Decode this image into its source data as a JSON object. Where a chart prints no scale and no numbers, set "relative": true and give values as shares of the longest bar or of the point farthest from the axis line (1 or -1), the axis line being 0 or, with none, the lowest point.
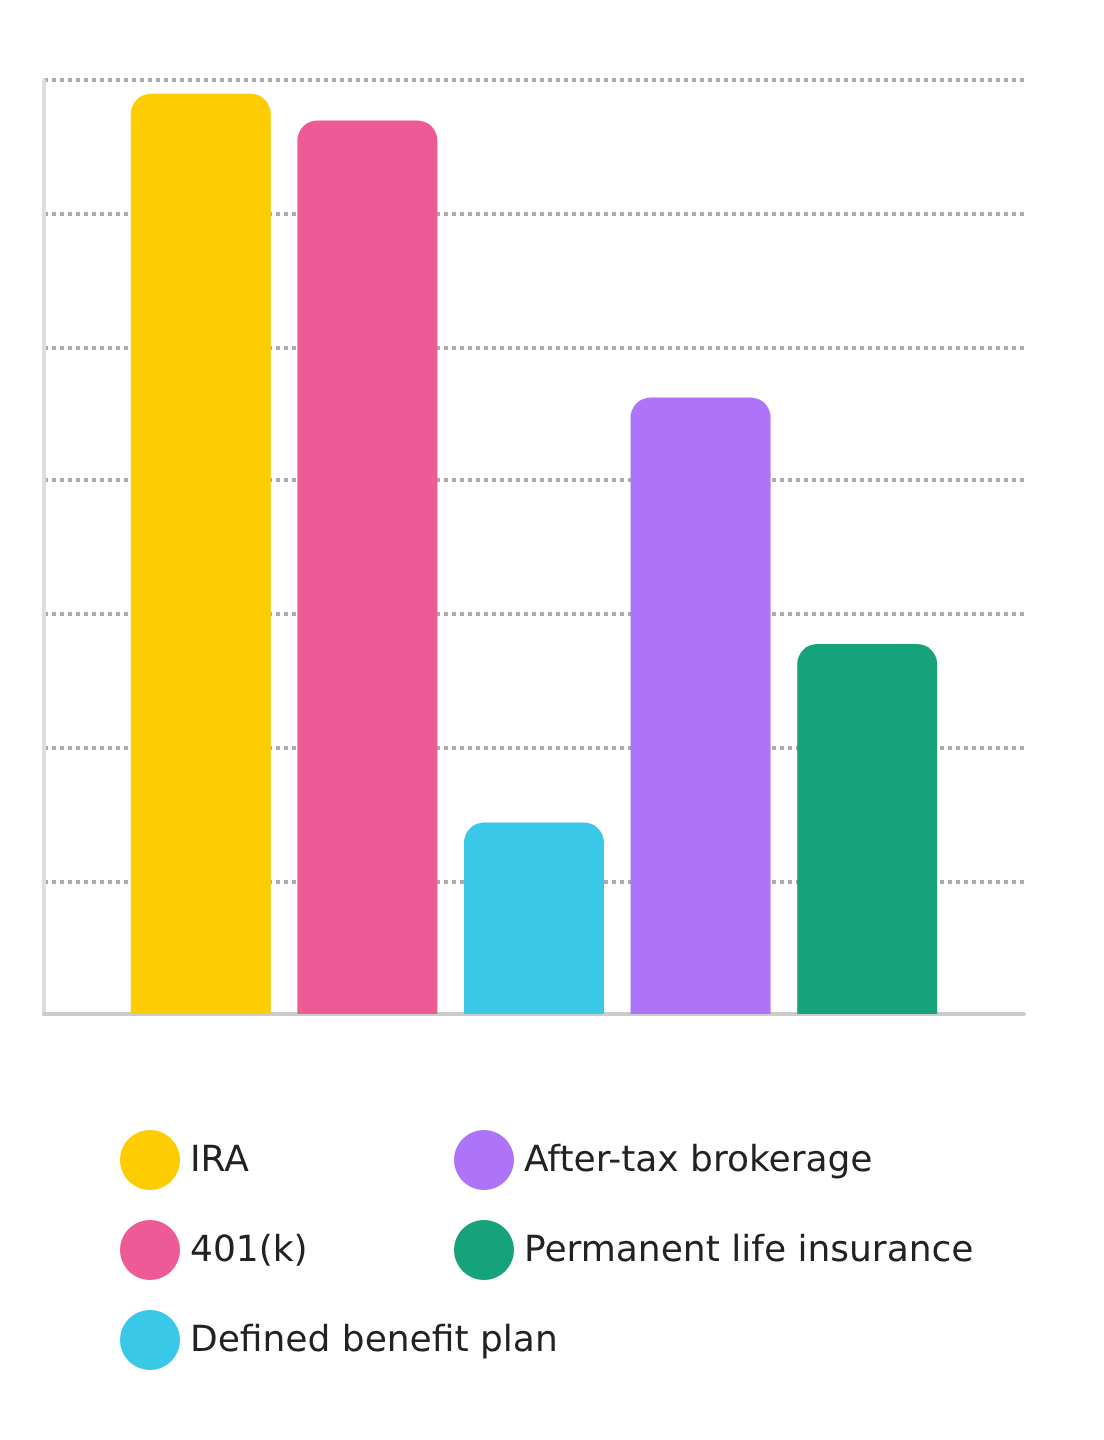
{
  "chart_data": {
    "type": "bar",
    "relative": true,
    "categories": [
      null
    ],
    "series": [
      {
        "name": "IRA",
        "color": "#fdcc02",
        "values": [
          1
        ]
      },
      {
        "name": "401(k)",
        "color": "#ee5a96",
        "values": [
          0.971
        ]
      },
      {
        "name": "Defined benefit plan",
        "color": "#3ac8e8",
        "values": [
          0.208
        ]
      },
      {
        "name": "After-tax brokerage",
        "color": "#ad73f9",
        "values": [
          0.67
        ]
      },
      {
        "name": "Permanent life insurance",
        "color": "#16a27a",
        "values": [
          0.402
        ]
      }
    ],
    "grid": "y",
    "line_style": "dotted",
    "legend": "bottom"
  }
}
